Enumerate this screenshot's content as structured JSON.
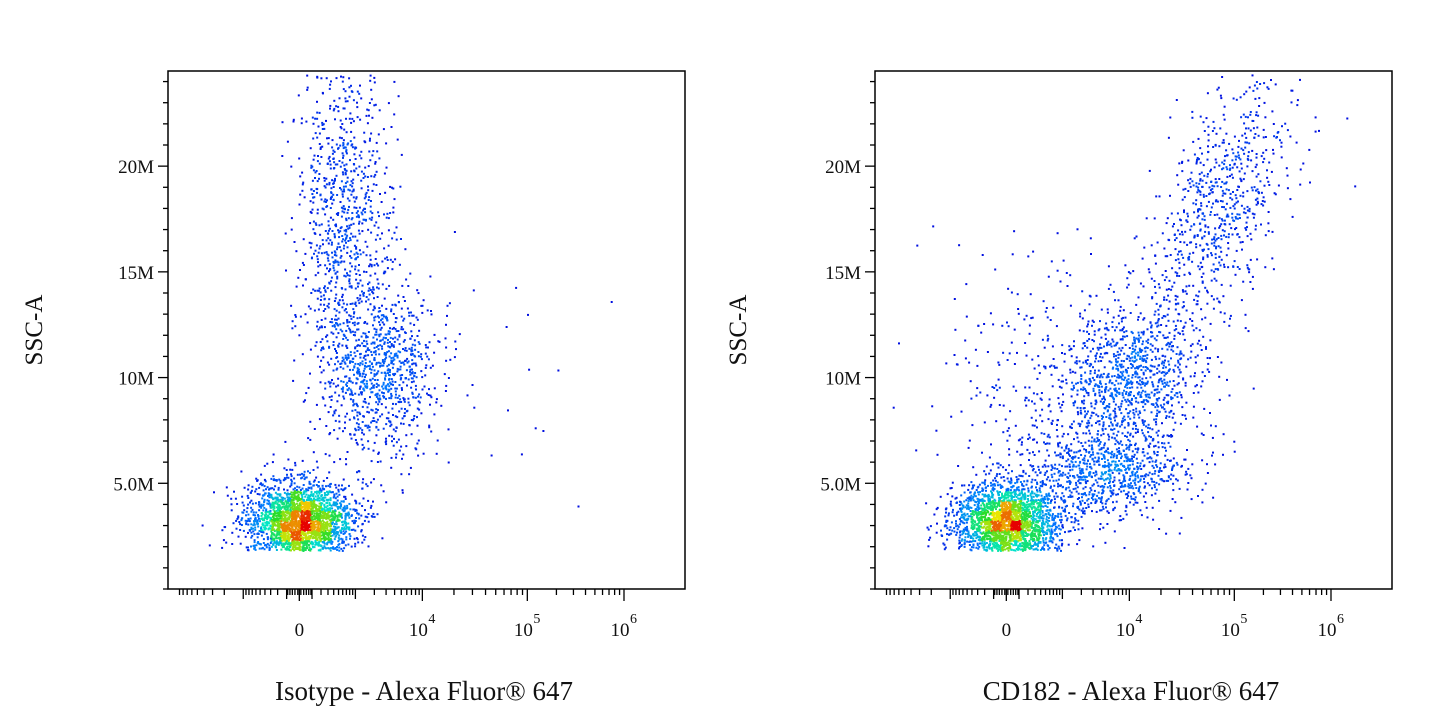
{
  "chart_data": [
    {
      "type": "scatter",
      "variant": "flow-cytometry-density-dot-plot",
      "title": "",
      "xlabel": "Isotype - Alexa Fluor® 647",
      "ylabel": "SSC-A",
      "x_scale": "biexponential",
      "x_ticks": [
        {
          "value": 0,
          "label": "0",
          "exp": ""
        },
        {
          "value": 10000,
          "label": "10",
          "exp": "4"
        },
        {
          "value": 100000,
          "label": "10",
          "exp": "5"
        },
        {
          "value": 1000000,
          "label": "10",
          "exp": "6"
        }
      ],
      "y_ticks": [
        {
          "value": 5000000,
          "label": "5.0M"
        },
        {
          "value": 10000000,
          "label": "10M"
        },
        {
          "value": 15000000,
          "label": "15M"
        },
        {
          "value": 20000000,
          "label": "20M"
        }
      ],
      "ylim": [
        0,
        24500000
      ],
      "grid": false,
      "color_scale": "density: blue (low) → cyan → green → yellow → red (high)",
      "populations": [
        {
          "x_center": 0,
          "y_center": 3200000,
          "points": 2600
        },
        {
          "x_center": 2200,
          "y_center": 10500000,
          "points": 950
        },
        {
          "x_center": 600,
          "y_center": 18000000,
          "points": 850
        },
        {
          "x_center": 40000,
          "y_center": 9000000,
          "points": 20
        }
      ]
    },
    {
      "type": "scatter",
      "variant": "flow-cytometry-density-dot-plot",
      "title": "",
      "xlabel": "CD182 - Alexa Fluor® 647",
      "ylabel": "SSC-A",
      "x_scale": "biexponential",
      "x_ticks": [
        {
          "value": 0,
          "label": "0",
          "exp": ""
        },
        {
          "value": 10000,
          "label": "10",
          "exp": "4"
        },
        {
          "value": 100000,
          "label": "10",
          "exp": "5"
        },
        {
          "value": 1000000,
          "label": "10",
          "exp": "6"
        }
      ],
      "y_ticks": [
        {
          "value": 5000000,
          "label": "5.0M"
        },
        {
          "value": 10000000,
          "label": "10M"
        },
        {
          "value": 15000000,
          "label": "15M"
        },
        {
          "value": 20000000,
          "label": "20M"
        }
      ],
      "ylim": [
        0,
        24500000
      ],
      "grid": false,
      "color_scale": "density: blue (low) → cyan → green → yellow → red (high)",
      "populations": [
        {
          "x_center": 0,
          "y_center": 3200000,
          "points": 2400
        },
        {
          "x_center": 4000,
          "y_center": 5500000,
          "points": 700
        },
        {
          "x_center": 10000,
          "y_center": 10000000,
          "points": 750
        },
        {
          "x_center": 70000,
          "y_center": 18000000,
          "points": 800
        },
        {
          "x_center": 2000,
          "y_center": 8500000,
          "points": 600
        }
      ]
    }
  ]
}
